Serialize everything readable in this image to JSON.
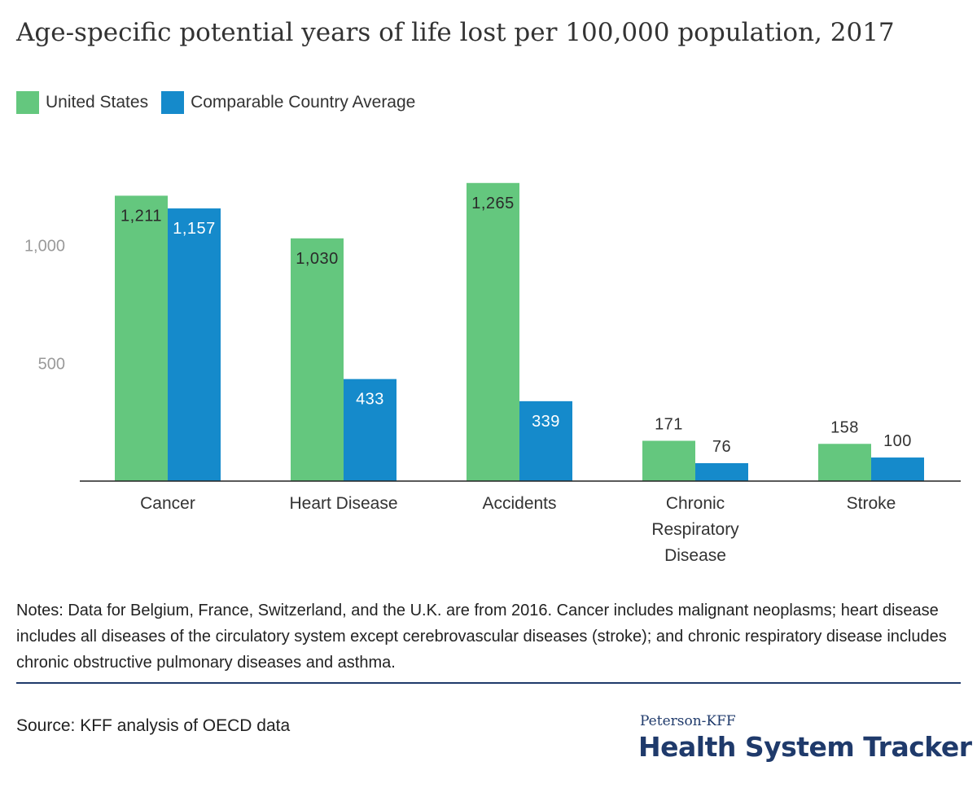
{
  "chart_data": {
    "type": "bar",
    "title": "Age-specific potential years of life lost per 100,000 population, 2017",
    "categories": [
      [
        "Cancer"
      ],
      [
        "Heart Disease"
      ],
      [
        "Accidents"
      ],
      [
        "Chronic",
        "Respiratory",
        "Disease"
      ],
      [
        "Stroke"
      ]
    ],
    "series": [
      {
        "name": "United States",
        "color": "#64c77e",
        "values": [
          1211,
          1030,
          1265,
          171,
          158
        ],
        "labels": [
          "1,211",
          "1,030",
          "1,265",
          "171",
          "158"
        ]
      },
      {
        "name": "Comparable Country Average",
        "color": "#158acb",
        "values": [
          1157,
          433,
          339,
          76,
          100
        ],
        "labels": [
          "1,157",
          "433",
          "339",
          "76",
          "100"
        ]
      }
    ],
    "yticks": [
      {
        "value": 500,
        "label": "500"
      },
      {
        "value": 1000,
        "label": "1,000"
      }
    ],
    "ylim": [
      0,
      1300
    ],
    "grid": false,
    "legend_position": "top-left"
  },
  "notes": "Notes: Data for Belgium, France, Switzerland, and the U.K. are from 2016. Cancer includes malignant neoplasms; heart disease includes all diseases of the circulatory system except cerebrovascular diseases (stroke); and chronic respiratory disease includes chronic obstructive pulmonary diseases and asthma.",
  "source": "Source: KFF analysis of OECD data",
  "brand": {
    "small": "Peterson-KFF",
    "big": "Health System Tracker"
  }
}
